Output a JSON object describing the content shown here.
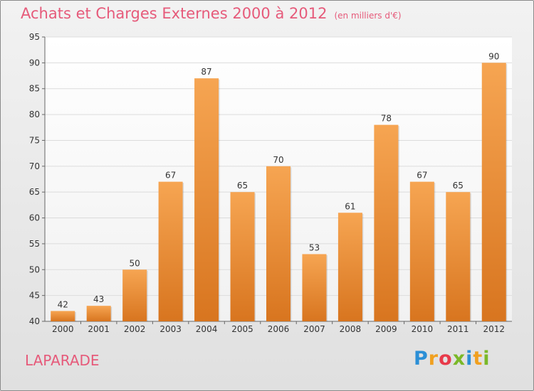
{
  "header": {
    "title": "Achats et Charges Externes 2000 à 2012",
    "subtitle": "(en milliers d'€)"
  },
  "location": "LAPARADE",
  "logo": {
    "letters": [
      "P",
      "r",
      "o",
      "x",
      "i",
      "t",
      "i"
    ],
    "colors": [
      "#2b8fd6",
      "#f0a020",
      "#e83a4a",
      "#7ab828",
      "#2b8fd6",
      "#f0a020",
      "#7ab828"
    ]
  },
  "chart_data": {
    "type": "bar",
    "title": "Achats et Charges Externes 2000 à 2012",
    "subtitle": "(en milliers d'€)",
    "categories": [
      "2000",
      "2001",
      "2002",
      "2003",
      "2004",
      "2005",
      "2006",
      "2007",
      "2008",
      "2009",
      "2010",
      "2011",
      "2012"
    ],
    "values": [
      42,
      43,
      50,
      67,
      87,
      65,
      70,
      53,
      61,
      78,
      67,
      65,
      90
    ],
    "ylim": [
      40,
      95
    ],
    "yticks": [
      40,
      45,
      50,
      55,
      60,
      65,
      70,
      75,
      80,
      85,
      90,
      95
    ],
    "grid": true,
    "bar_color": "#f08c30"
  }
}
